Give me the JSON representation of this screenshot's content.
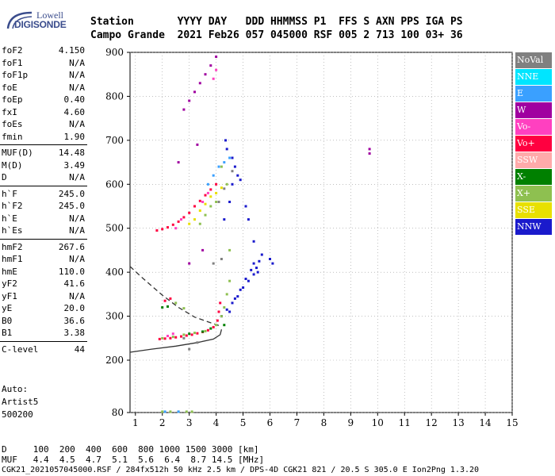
{
  "logo": {
    "line1": "Lowell",
    "line2": "DIGISONDE"
  },
  "header": {
    "line1": "Station       YYYY DAY   DDD HHMMSS P1  FFS S AXN PPS IGA PS",
    "line2": "Campo Grande  2021 Feb26 057 045000 RSF 005 2 713 100 03+ 36"
  },
  "params": {
    "g1": [
      {
        "name": "foF2",
        "value": "4.150"
      },
      {
        "name": "foF1",
        "value": "N/A"
      },
      {
        "name": "foF1p",
        "value": "N/A"
      },
      {
        "name": "foE",
        "value": "N/A"
      },
      {
        "name": "foEp",
        "value": "0.40"
      },
      {
        "name": "fxI",
        "value": "4.60"
      },
      {
        "name": "foEs",
        "value": "N/A"
      },
      {
        "name": "fmin",
        "value": "1.90"
      }
    ],
    "g2": [
      {
        "name": "MUF(D)",
        "value": "14.48"
      },
      {
        "name": "M(D)",
        "value": "3.49"
      },
      {
        "name": "D",
        "value": "N/A"
      }
    ],
    "g3": [
      {
        "name": "h`F",
        "value": "245.0"
      },
      {
        "name": "h`F2",
        "value": "245.0"
      },
      {
        "name": "h`E",
        "value": "N/A"
      },
      {
        "name": "h`Es",
        "value": "N/A"
      }
    ],
    "g4": [
      {
        "name": "hmF2",
        "value": "267.6"
      },
      {
        "name": "hmF1",
        "value": "N/A"
      },
      {
        "name": "hmE",
        "value": "110.0"
      },
      {
        "name": "yF2",
        "value": "41.6"
      },
      {
        "name": "yF1",
        "value": "N/A"
      },
      {
        "name": "yE",
        "value": "20.0"
      },
      {
        "name": "B0",
        "value": "36.6"
      },
      {
        "name": "B1",
        "value": "3.38"
      }
    ],
    "g5": [
      {
        "name": "C-level",
        "value": "44"
      }
    ]
  },
  "auto": {
    "line1": "Auto:",
    "line2": "Artist5",
    "line3": "500200"
  },
  "legend": [
    {
      "label": "NoVal",
      "color": "#808080"
    },
    {
      "label": "NNE",
      "color": "#00e5ff"
    },
    {
      "label": "E",
      "color": "#3aa0ff"
    },
    {
      "label": "W",
      "color": "#a000a0"
    },
    {
      "label": "Vo-",
      "color": "#ff40c0"
    },
    {
      "label": "Vo+",
      "color": "#ff0040"
    },
    {
      "label": "SSW",
      "color": "#ffaaaa"
    },
    {
      "label": "X-",
      "color": "#008000"
    },
    {
      "label": "X+",
      "color": "#8ec050"
    },
    {
      "label": "SSE",
      "color": "#e8e000"
    },
    {
      "label": "NNW",
      "color": "#1a1acc"
    }
  ],
  "bottom": {
    "line1": "D     100  200  400  600  800 1000 1500 3000 [km]",
    "line2": "MUF   4.4  4.5  4.7  5.1  5.6  6.4  8.7 14.5 [MHz]",
    "line3": "CGK21_2021057045000.RSF / 284fx512h 50 kHz 2.5 km / DPS-4D CGK21 821 / 20.5 S 305.0 E Ion2Png 1.3.20"
  },
  "chart_data": {
    "type": "scatter",
    "xlim": [
      0.8,
      15
    ],
    "ylim": [
      80,
      900
    ],
    "xticks": [
      1,
      2,
      3,
      4,
      5,
      6,
      7,
      8,
      9,
      10,
      11,
      12,
      13,
      14,
      15
    ],
    "yticks": [
      80,
      200,
      300,
      400,
      500,
      600,
      700,
      800,
      900
    ],
    "grid": true,
    "profile_solid": [
      [
        4.2,
        270
      ],
      [
        4.15,
        258
      ],
      [
        3.9,
        248
      ],
      [
        3.3,
        240
      ],
      [
        2.5,
        232
      ],
      [
        1.6,
        225
      ],
      [
        0.8,
        218
      ]
    ],
    "profile_dashed": [
      [
        0.8,
        413
      ],
      [
        1.3,
        385
      ],
      [
        2.0,
        348
      ],
      [
        2.6,
        320
      ],
      [
        3.2,
        298
      ],
      [
        3.8,
        285
      ],
      [
        4.15,
        278
      ]
    ],
    "series": [
      {
        "color": "#ff0040",
        "points": [
          [
            1.9,
            248
          ],
          [
            2.1,
            249
          ],
          [
            2.3,
            250
          ],
          [
            2.5,
            252
          ],
          [
            2.7,
            254
          ],
          [
            2.9,
            256
          ],
          [
            3.1,
            258
          ],
          [
            3.3,
            261
          ],
          [
            3.5,
            264
          ],
          [
            3.7,
            268
          ],
          [
            3.9,
            275
          ],
          [
            4.05,
            290
          ],
          [
            4.1,
            310
          ],
          [
            4.15,
            330
          ],
          [
            1.8,
            495
          ],
          [
            2.0,
            498
          ],
          [
            2.2,
            502
          ],
          [
            2.4,
            508
          ],
          [
            2.6,
            515
          ],
          [
            2.8,
            525
          ],
          [
            3.0,
            535
          ],
          [
            3.2,
            550
          ],
          [
            3.4,
            562
          ],
          [
            3.6,
            575
          ],
          [
            3.8,
            588
          ],
          [
            4.0,
            600
          ],
          [
            2.1,
            335
          ],
          [
            2.3,
            340
          ]
        ]
      },
      {
        "color": "#1a1acc",
        "points": [
          [
            4.2,
            300
          ],
          [
            4.4,
            315
          ],
          [
            4.6,
            330
          ],
          [
            4.8,
            345
          ],
          [
            5.0,
            365
          ],
          [
            5.2,
            380
          ],
          [
            5.4,
            395
          ],
          [
            5.5,
            410
          ],
          [
            5.6,
            425
          ],
          [
            5.7,
            440
          ],
          [
            4.5,
            310
          ],
          [
            4.7,
            340
          ],
          [
            4.9,
            360
          ],
          [
            5.1,
            385
          ],
          [
            5.3,
            405
          ],
          [
            5.1,
            550
          ],
          [
            5.2,
            520
          ],
          [
            6.0,
            430
          ],
          [
            6.1,
            420
          ],
          [
            4.3,
            520
          ],
          [
            4.5,
            560
          ],
          [
            4.6,
            600
          ],
          [
            4.7,
            640
          ],
          [
            4.4,
            680
          ],
          [
            4.6,
            660
          ],
          [
            4.8,
            620
          ],
          [
            4.9,
            610
          ],
          [
            5.4,
            470
          ],
          [
            5.4,
            420
          ],
          [
            5.55,
            400
          ],
          [
            4.35,
            700
          ]
        ]
      },
      {
        "color": "#8ec050",
        "points": [
          [
            2.0,
            250
          ],
          [
            2.4,
            253
          ],
          [
            2.8,
            258
          ],
          [
            3.2,
            262
          ],
          [
            3.6,
            266
          ],
          [
            4.0,
            280
          ],
          [
            4.2,
            300
          ],
          [
            4.3,
            320
          ],
          [
            4.4,
            350
          ],
          [
            4.5,
            380
          ],
          [
            4.5,
            450
          ],
          [
            3.4,
            510
          ],
          [
            3.6,
            530
          ],
          [
            3.8,
            550
          ],
          [
            4.0,
            560
          ],
          [
            2.0,
            82
          ],
          [
            2.3,
            82
          ],
          [
            2.6,
            82
          ],
          [
            2.9,
            82
          ],
          [
            3.1,
            82
          ],
          [
            2.5,
            330
          ],
          [
            2.8,
            318
          ],
          [
            4.2,
            640
          ],
          [
            4.4,
            600
          ]
        ]
      },
      {
        "color": "#e8e000",
        "points": [
          [
            3.2,
            520
          ],
          [
            3.4,
            540
          ],
          [
            3.6,
            555
          ],
          [
            3.8,
            572
          ],
          [
            4.0,
            580
          ],
          [
            4.2,
            592
          ],
          [
            3.0,
            510
          ]
        ]
      },
      {
        "color": "#a000a0",
        "points": [
          [
            2.8,
            770
          ],
          [
            3.0,
            790
          ],
          [
            3.2,
            810
          ],
          [
            3.4,
            830
          ],
          [
            3.6,
            850
          ],
          [
            3.8,
            870
          ],
          [
            4.0,
            890
          ],
          [
            9.7,
            680
          ],
          [
            9.7,
            670
          ],
          [
            3.3,
            690
          ],
          [
            3.0,
            420
          ],
          [
            3.5,
            450
          ],
          [
            2.6,
            650
          ]
        ]
      },
      {
        "color": "#ff40c0",
        "points": [
          [
            3.9,
            840
          ],
          [
            4.0,
            860
          ],
          [
            3.5,
            560
          ],
          [
            3.7,
            580
          ],
          [
            2.5,
            500
          ],
          [
            2.7,
            520
          ],
          [
            2.4,
            260
          ],
          [
            2.2,
            255
          ]
        ]
      },
      {
        "color": "#3aa0ff",
        "points": [
          [
            3.7,
            600
          ],
          [
            3.9,
            620
          ],
          [
            4.1,
            640
          ],
          [
            4.3,
            650
          ],
          [
            4.5,
            660
          ],
          [
            2.1,
            82
          ],
          [
            2.6,
            82
          ]
        ]
      },
      {
        "color": "#008000",
        "points": [
          [
            3.0,
            260
          ],
          [
            3.5,
            265
          ],
          [
            3.8,
            272
          ],
          [
            2.0,
            320
          ],
          [
            2.2,
            322
          ],
          [
            4.3,
            280
          ]
        ]
      },
      {
        "color": "#808080",
        "points": [
          [
            3.3,
            240
          ],
          [
            2.8,
            250
          ],
          [
            3.0,
            225
          ],
          [
            4.1,
            560
          ],
          [
            4.3,
            590
          ],
          [
            4.6,
            630
          ],
          [
            3.9,
            420
          ],
          [
            4.2,
            430
          ]
        ]
      }
    ]
  }
}
